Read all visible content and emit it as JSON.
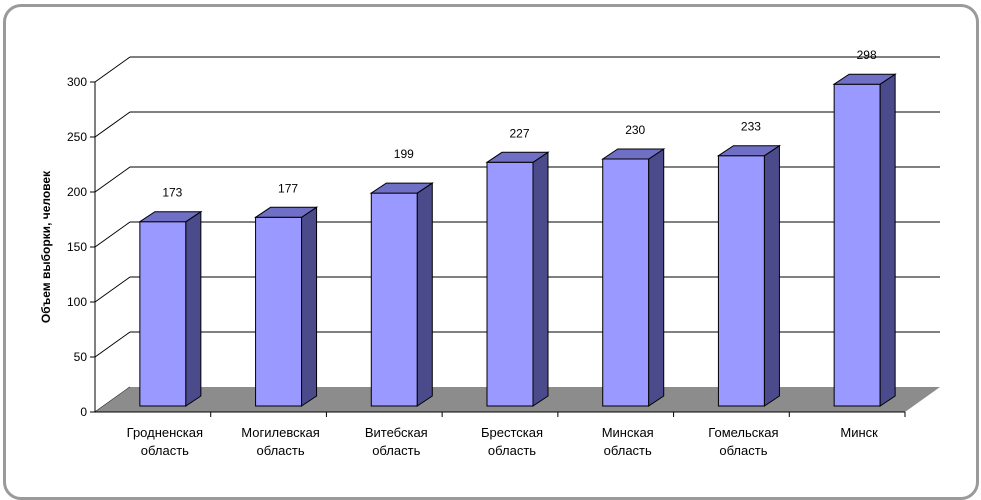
{
  "chart_data": {
    "type": "bar",
    "title": "",
    "xlabel": "",
    "ylabel": "Объем выборки, человек",
    "ylim": [
      0,
      300
    ],
    "yticks": [
      0,
      50,
      100,
      150,
      200,
      250,
      300
    ],
    "grid": true,
    "style": "3d-column",
    "colors": {
      "bar_front": "#9999ff",
      "bar_side": "#4b4b8c",
      "bar_top": "#6f6fc6",
      "floor": "#8c8c8c"
    },
    "categories": [
      [
        "Гродненская",
        "область"
      ],
      [
        "Могилевская",
        "область"
      ],
      [
        "Витебская",
        "область"
      ],
      [
        "Брестская",
        "область"
      ],
      [
        "Минская",
        "область"
      ],
      [
        "Гомельская",
        "область"
      ],
      [
        "Минск"
      ]
    ],
    "values": [
      173,
      177,
      199,
      227,
      230,
      233,
      298
    ]
  }
}
